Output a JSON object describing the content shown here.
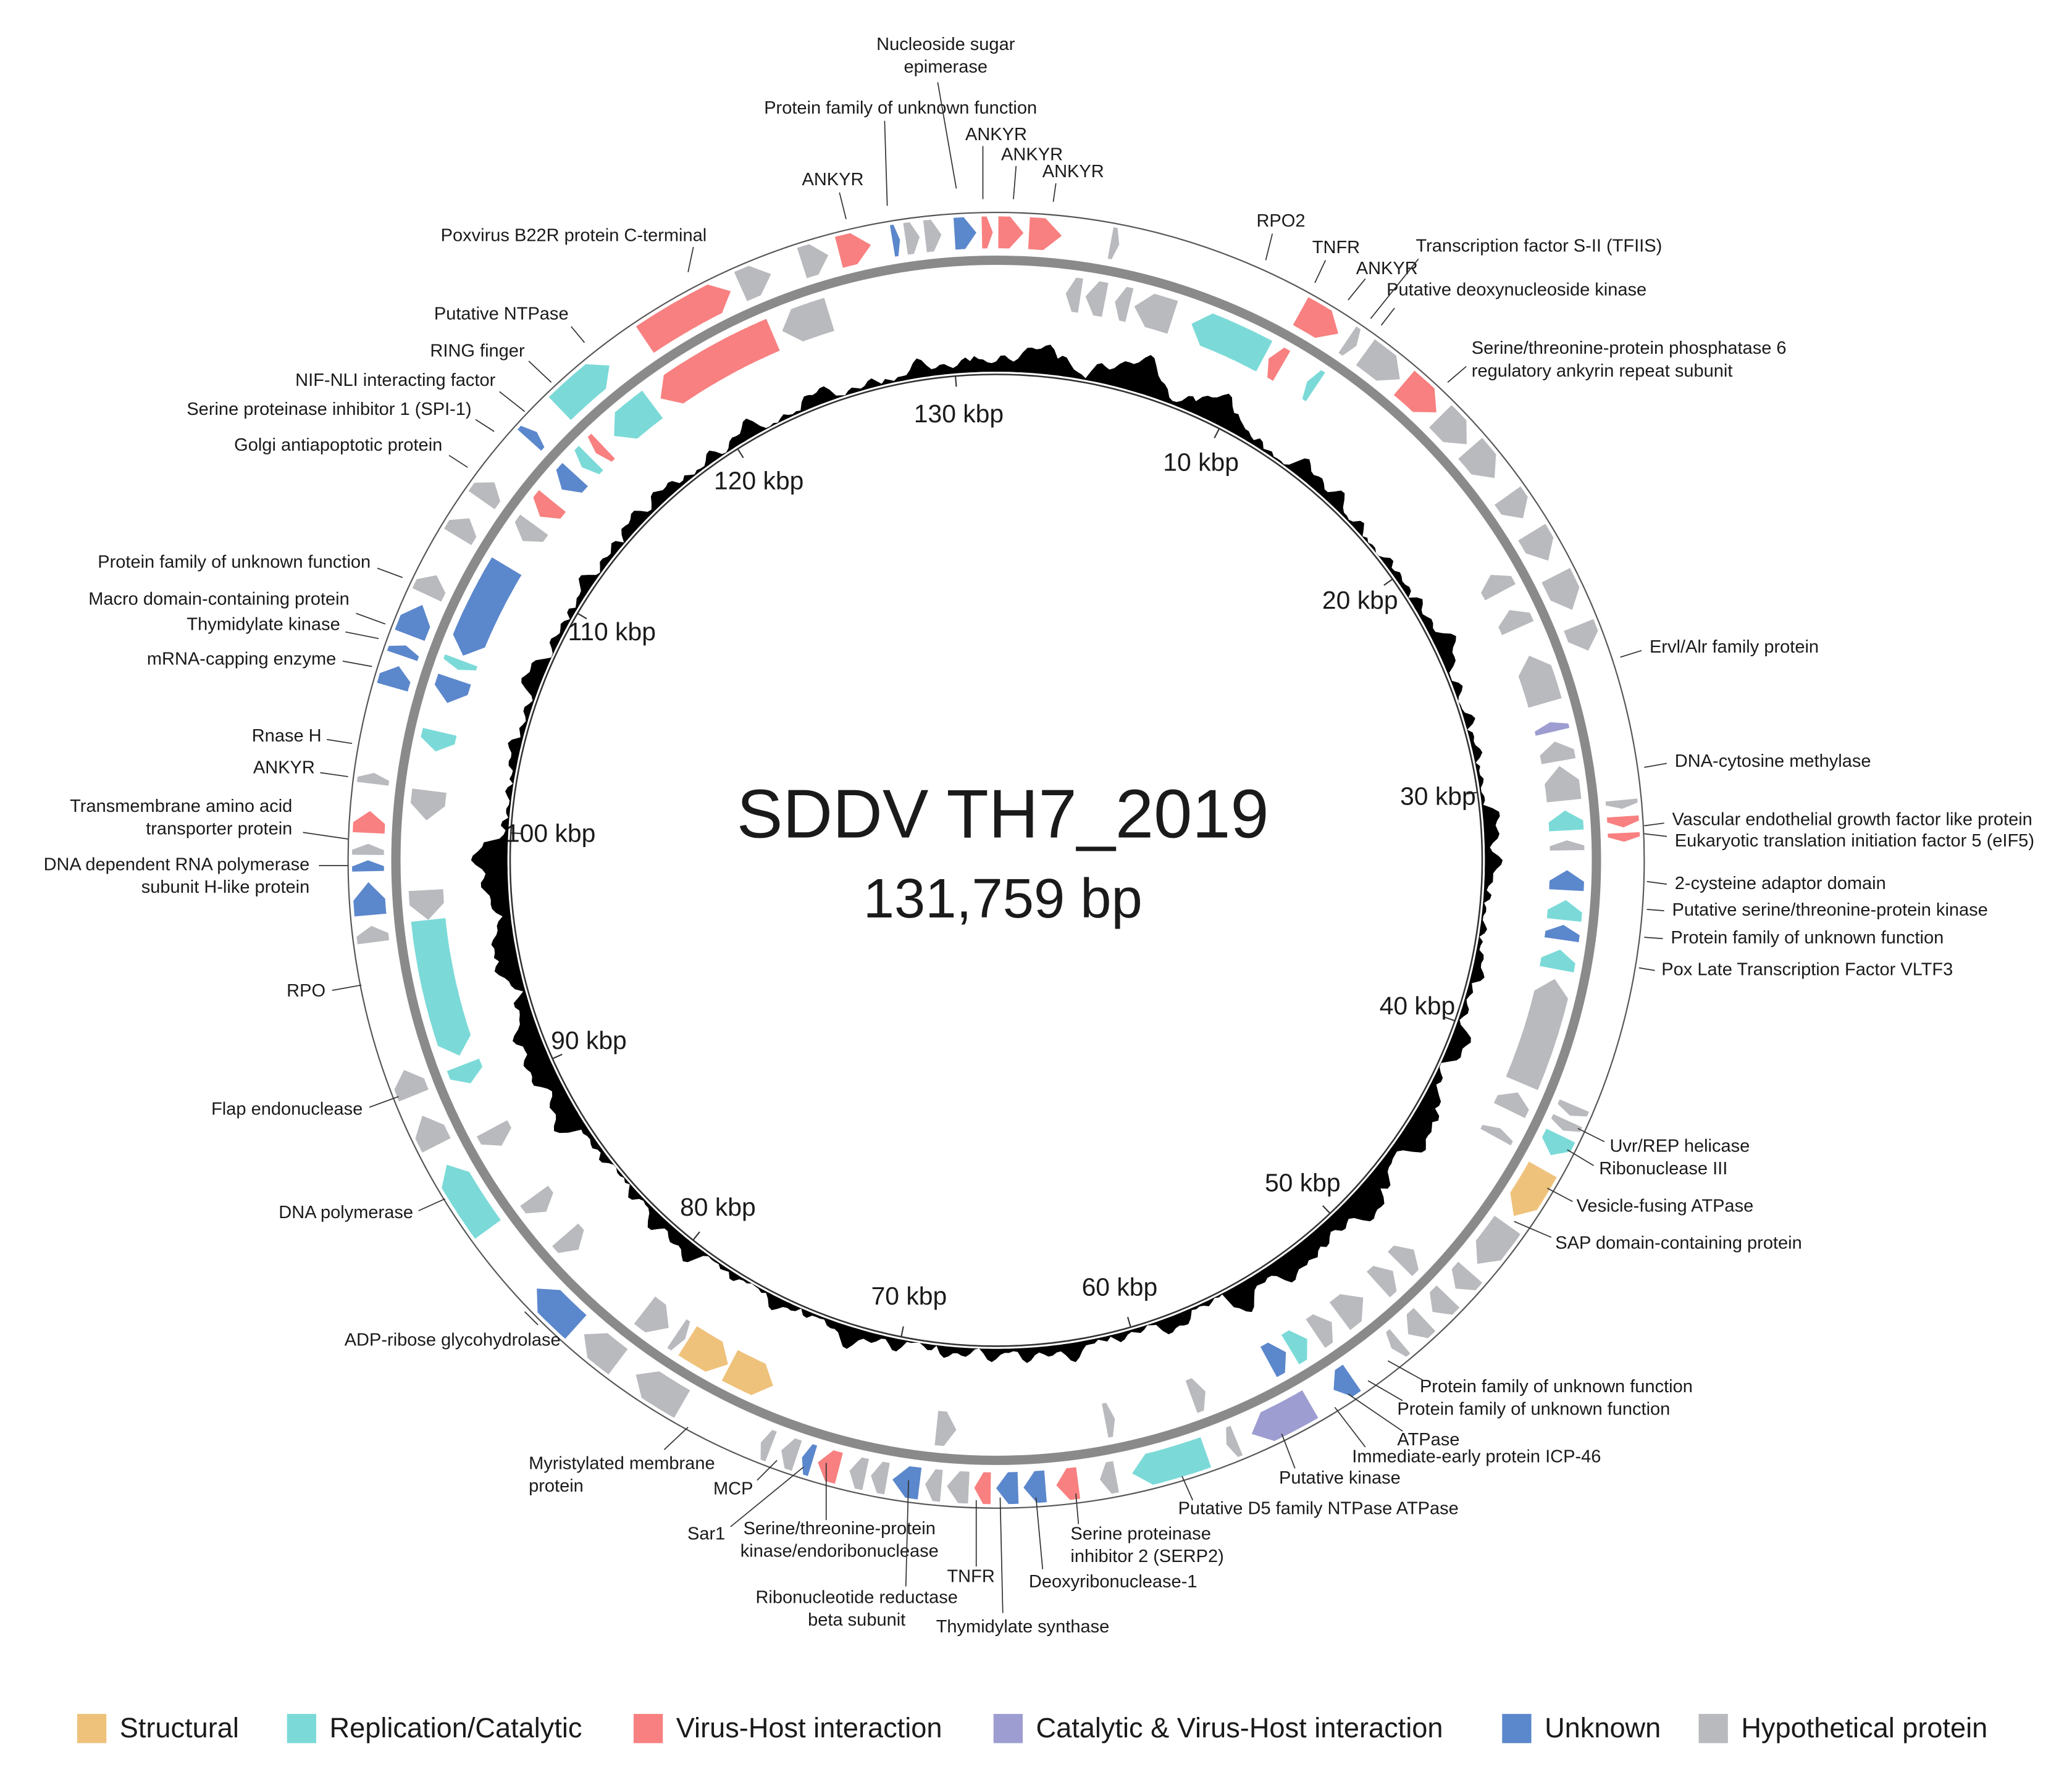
{
  "title": "SDDV TH7_2019",
  "genome_size": {
    "value": 131759,
    "label": "131,759 bp"
  },
  "scale_ticks": [
    {
      "value": 10000,
      "label": "10 kbp"
    },
    {
      "value": 20000,
      "label": "20 kbp"
    },
    {
      "value": 30000,
      "label": "30 kbp"
    },
    {
      "value": 40000,
      "label": "40 kbp"
    },
    {
      "value": 50000,
      "label": "50 kbp"
    },
    {
      "value": 60000,
      "label": "60 kbp"
    },
    {
      "value": 70000,
      "label": "70 kbp"
    },
    {
      "value": 80000,
      "label": "80 kbp"
    },
    {
      "value": 90000,
      "label": "90 kbp"
    },
    {
      "value": 100000,
      "label": "100 kbp"
    },
    {
      "value": 110000,
      "label": "110 kbp"
    },
    {
      "value": 120000,
      "label": "120 kbp"
    },
    {
      "value": 130000,
      "label": "130 kbp"
    }
  ],
  "annotations": [
    {
      "lines": [
        "Poxvirus B22R protein C-terminal"
      ]
    },
    {
      "lines": [
        "Putative NTPase"
      ]
    },
    {
      "lines": [
        "RING finger"
      ]
    },
    {
      "lines": [
        "NIF-NLI interacting factor"
      ]
    },
    {
      "lines": [
        "Serine proteinase inhibitor 1 (SPI-1)"
      ]
    },
    {
      "lines": [
        "Golgi antiapoptotic protein"
      ]
    },
    {
      "lines": [
        "Protein family of unknown function"
      ]
    },
    {
      "lines": [
        "Macro domain-containing protein"
      ]
    },
    {
      "lines": [
        "Thymidylate kinase"
      ]
    },
    {
      "lines": [
        "mRNA-capping enzyme"
      ]
    },
    {
      "lines": [
        "Rnase H"
      ]
    },
    {
      "lines": [
        "ANKYR"
      ]
    },
    {
      "lines": [
        "Transmembrane amino acid",
        "transporter protein"
      ]
    },
    {
      "lines": [
        "DNA dependent RNA polymerase",
        "subunit H-like protein"
      ]
    },
    {
      "lines": [
        "RPO"
      ]
    },
    {
      "lines": [
        "Flap endonuclease"
      ]
    },
    {
      "lines": [
        "DNA polymerase"
      ]
    },
    {
      "lines": [
        "ADP-ribose glycohydrolase"
      ]
    },
    {
      "lines": [
        "Myristylated membrane",
        "protein"
      ]
    },
    {
      "lines": [
        "MCP"
      ]
    },
    {
      "lines": [
        "Sar1"
      ]
    },
    {
      "lines": [
        "Serine/threonine-protein",
        "kinase/endoribonuclease"
      ]
    },
    {
      "lines": [
        "Ribonucleotide reductase",
        "beta subunit"
      ]
    },
    {
      "lines": [
        "TNFR"
      ]
    },
    {
      "lines": [
        "Thymidylate synthase"
      ]
    },
    {
      "lines": [
        "Deoxyribonuclease-1"
      ]
    },
    {
      "lines": [
        "Serine proteinase",
        "inhibitor 2 (SERP2)"
      ]
    },
    {
      "lines": [
        "Putative D5 family NTPase ATPase"
      ]
    },
    {
      "lines": [
        "Putative kinase"
      ]
    },
    {
      "lines": [
        "Immediate-early protein ICP-46"
      ]
    },
    {
      "lines": [
        "ATPase"
      ]
    },
    {
      "lines": [
        "Protein family of unknown function"
      ]
    },
    {
      "lines": [
        "Protein family of unknown function"
      ]
    },
    {
      "lines": [
        "SAP domain-containing protein"
      ]
    },
    {
      "lines": [
        "Vesicle-fusing ATPase"
      ]
    },
    {
      "lines": [
        "Ribonuclease III"
      ]
    },
    {
      "lines": [
        "Uvr/REP helicase"
      ]
    },
    {
      "lines": [
        "Pox Late Transcription Factor VLTF3"
      ]
    },
    {
      "lines": [
        "Protein family of unknown function"
      ]
    },
    {
      "lines": [
        "Putative serine/threonine-protein kinase"
      ]
    },
    {
      "lines": [
        "2-cysteine adaptor domain"
      ]
    },
    {
      "lines": [
        "Eukaryotic translation initiation factor 5 (eIF5)"
      ]
    },
    {
      "lines": [
        "Vascular endothelial growth factor like protein"
      ]
    },
    {
      "lines": [
        "DNA-cytosine methylase"
      ]
    },
    {
      "lines": [
        "Ervl/Alr family protein"
      ]
    },
    {
      "lines": [
        "Serine/threonine-protein phosphatase 6",
        "regulatory ankyrin repeat subunit"
      ]
    },
    {
      "lines": [
        "Putative deoxynucleoside kinase"
      ]
    },
    {
      "lines": [
        "ANKYR"
      ]
    },
    {
      "lines": [
        "Transcription factor S-II (TFIIS)"
      ]
    },
    {
      "lines": [
        "TNFR"
      ]
    },
    {
      "lines": [
        "RPO2"
      ]
    },
    {
      "lines": [
        "ANKYR"
      ]
    },
    {
      "lines": [
        "Protein family of unknown function"
      ]
    },
    {
      "lines": [
        "Nucleoside sugar",
        "epimerase"
      ]
    },
    {
      "lines": [
        "ANKYR"
      ]
    },
    {
      "lines": [
        "ANKYR"
      ]
    },
    {
      "lines": [
        "ANKYR"
      ]
    }
  ],
  "legend": [
    {
      "name": "Structural",
      "color": "#efc27c"
    },
    {
      "name": "Replication/Catalytic",
      "color": "#7bdad8"
    },
    {
      "name": "Virus-Host interaction",
      "color": "#f88080"
    },
    {
      "name": "Catalytic & Virus-Host interaction",
      "color": "#9d9dd1"
    },
    {
      "name": "Unknown",
      "color": "#5b87cc"
    },
    {
      "name": "Hypothetical protein",
      "color": "#b9babe"
    }
  ]
}
